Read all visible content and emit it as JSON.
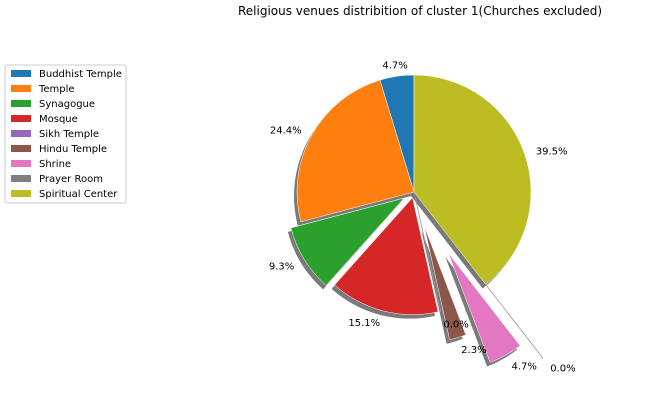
{
  "chart_data": {
    "type": "pie",
    "title": "Religious venues distribition of cluster 1(Churches excluded)",
    "legend_placement": "upper-left",
    "slices": [
      {
        "label": "Buddhist Temple",
        "value": 4.7,
        "pct_label": "4.7%",
        "color": "#1f77b4",
        "exploded": false
      },
      {
        "label": "Temple",
        "value": 24.4,
        "pct_label": "24.4%",
        "color": "#ff7f0e",
        "exploded": false
      },
      {
        "label": "Synagogue",
        "value": 9.3,
        "pct_label": "9.3%",
        "color": "#2ca02c",
        "exploded": true
      },
      {
        "label": "Mosque",
        "value": 15.1,
        "pct_label": "15.1%",
        "color": "#d62728",
        "exploded": true
      },
      {
        "label": "Sikh Temple",
        "value": 0.0,
        "pct_label": "0.0%",
        "color": "#9467bd",
        "exploded": true
      },
      {
        "label": "Hindu Temple",
        "value": 2.3,
        "pct_label": "2.3%",
        "color": "#8c564b",
        "exploded": true
      },
      {
        "label": "Shrine",
        "value": 4.7,
        "pct_label": "4.7%",
        "color": "#e377c2",
        "exploded": true
      },
      {
        "label": "Prayer Room",
        "value": 0.0,
        "pct_label": "0.0%",
        "color": "#7f7f7f",
        "exploded": true
      },
      {
        "label": "Spiritual Center",
        "value": 39.5,
        "pct_label": "39.5%",
        "color": "#bcbd22",
        "exploded": false
      }
    ]
  }
}
